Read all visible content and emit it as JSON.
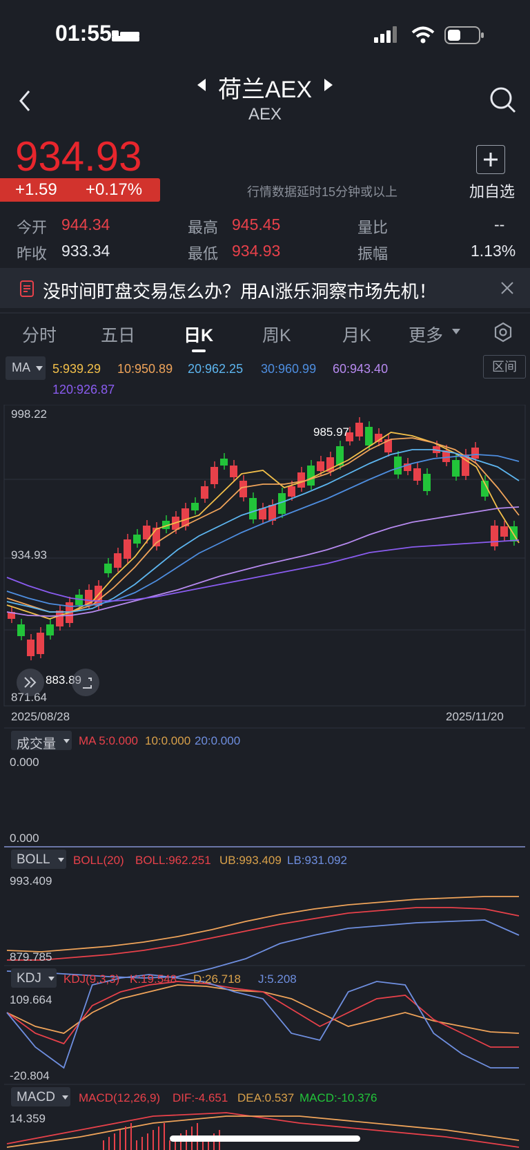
{
  "status": {
    "time": "01:55"
  },
  "header": {
    "title": "荷兰AEX",
    "subtitle": "AEX"
  },
  "quote": {
    "price": "934.93",
    "change": "+1.59",
    "change_pct": "+0.17%",
    "delay_note": "行情数据延时15分钟或以上",
    "add_label": "加自选",
    "open_label": "今开",
    "open": "944.34",
    "high_label": "最高",
    "high": "945.45",
    "vol_ratio_label": "量比",
    "vol_ratio": "--",
    "prev_close_label": "昨收",
    "prev_close": "933.34",
    "low_label": "最低",
    "low": "934.93",
    "amplitude_label": "振幅",
    "amplitude": "1.13%"
  },
  "banner": {
    "text": "没时间盯盘交易怎么办？用AI涨乐洞察市场先机！"
  },
  "tabs": [
    "分时",
    "五日",
    "日K",
    "周K",
    "月K",
    "更多"
  ],
  "ma": {
    "selector": "MA",
    "range_button": "区间",
    "ma5": "5:939.29",
    "ma10": "10:950.89",
    "ma20": "20:962.25",
    "ma30": "30:960.99",
    "ma60": "60:943.40",
    "ma120": "120:926.87"
  },
  "kline": {
    "y_high": "998.22",
    "y_mid": "934.93",
    "y_low": "871.64",
    "max_marker": "985.97",
    "min_marker": "883.89",
    "date_start": "2025/08/28",
    "date_end": "2025/11/20"
  },
  "volume": {
    "label": "成交量",
    "ma5": "MA 5:0.000",
    "ma10": "10:0.000",
    "ma20": "20:0.000",
    "top": "0.000",
    "bottom": "0.000"
  },
  "boll": {
    "label": "BOLL",
    "param": "BOLL(20)",
    "boll": "BOLL:962.251",
    "ub": "UB:993.409",
    "lb": "LB:931.092",
    "top": "993.409",
    "bottom": "879.785"
  },
  "kdj": {
    "label": "KDJ",
    "param": "KDJ(9,3,3)",
    "k": "K:19.548",
    "d": "D:26.718",
    "j": "J:5.208",
    "top": "109.664",
    "bottom": "-20.804"
  },
  "macd": {
    "label": "MACD",
    "param": "MACD(12,26,9)",
    "dif": "DIF:-4.651",
    "dea": "DEA:0.537",
    "macd": "MACD:-10.376",
    "top": "14.359"
  },
  "colors": {
    "up": "#e8414a",
    "down": "#22c43a",
    "ma5": "#f3c04a",
    "ma10": "#f0a45a",
    "ma20": "#5db6f0",
    "ma30": "#4e8ee0",
    "ma60": "#b78af0",
    "ma120": "#8a5cf0"
  }
}
